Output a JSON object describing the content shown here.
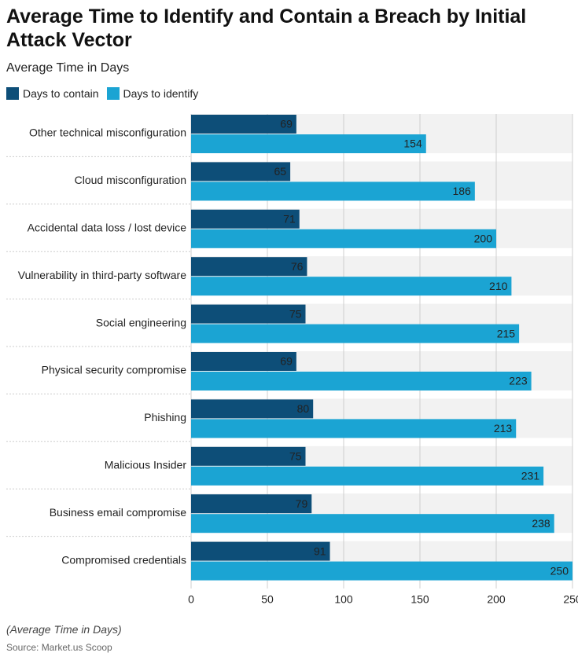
{
  "chart_data": {
    "type": "hbar",
    "title": "Average Time to Identify and Contain a Breach by Initial Attack Vector",
    "subtitle": "Average Time in Days",
    "note": "(Average Time in Days)",
    "source": "Source: Market.us Scoop",
    "categories": [
      "Other technical misconfiguration",
      "Cloud misconfiguration",
      "Accidental data loss / lost device",
      "Vulnerability in third-party software",
      "Social engineering",
      "Physical security compromise",
      "Phishing",
      "Malicious Insider",
      "Business email compromise",
      "Compromised credentials"
    ],
    "series": [
      {
        "name": "Days to contain",
        "color": "#0d4e78",
        "values": [
          69,
          65,
          71,
          76,
          75,
          69,
          80,
          75,
          79,
          91
        ]
      },
      {
        "name": "Days to identify",
        "color": "#1ba4d3",
        "values": [
          154,
          186,
          200,
          210,
          215,
          223,
          213,
          231,
          238,
          250
        ]
      }
    ],
    "xlim": [
      0,
      250
    ],
    "xticks": [
      0,
      50,
      100,
      150,
      200,
      250
    ],
    "grid": true
  }
}
